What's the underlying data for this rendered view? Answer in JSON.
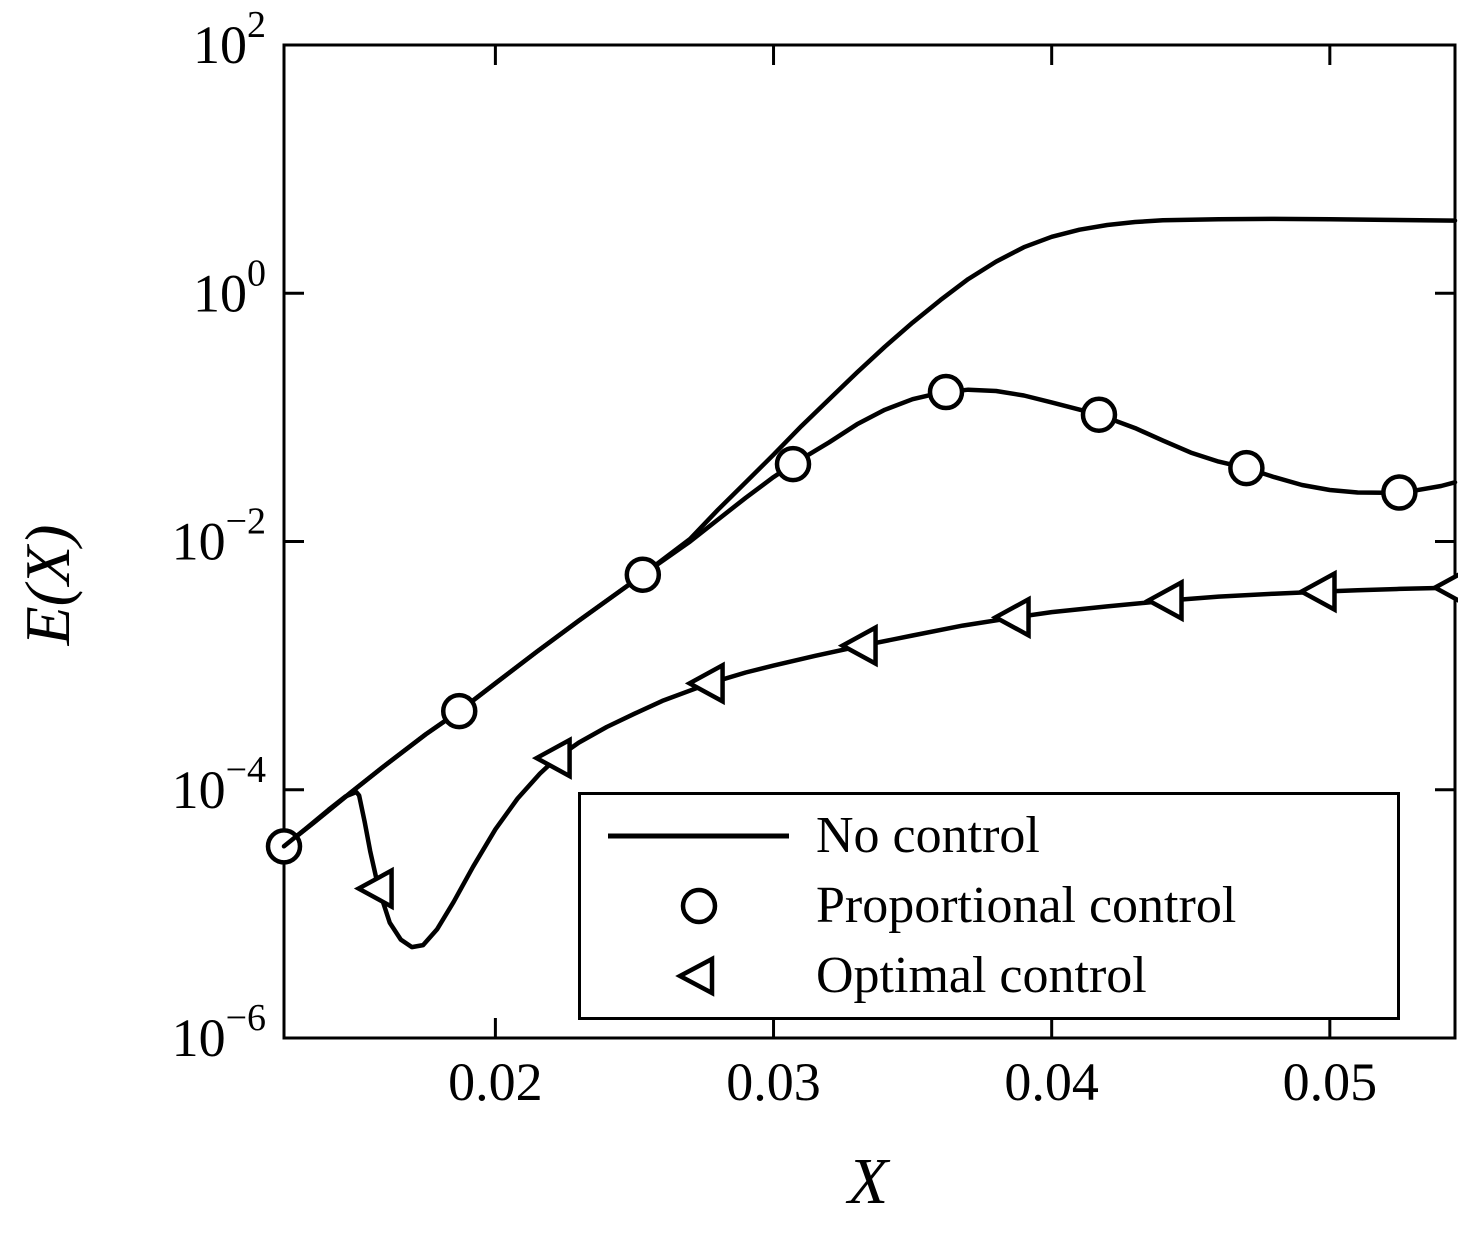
{
  "figure": {
    "background": "#ffffff",
    "line_color": "#000000"
  },
  "axes": {
    "x_ticks": [
      {
        "v": 0.02,
        "label": "0.02"
      },
      {
        "v": 0.03,
        "label": "0.03"
      },
      {
        "v": 0.04,
        "label": "0.04"
      },
      {
        "v": 0.05,
        "label": "0.05"
      }
    ],
    "y_ticks": [
      {
        "v": 100,
        "base": "10",
        "exp": "2"
      },
      {
        "v": 1,
        "base": "10",
        "exp": "0"
      },
      {
        "v": 0.01,
        "base": "10",
        "exp": "−2"
      },
      {
        "v": 0.0001,
        "base": "10",
        "exp": "−4"
      },
      {
        "v": 1e-06,
        "base": "10",
        "exp": "−6"
      }
    ]
  },
  "chart_data": {
    "type": "line",
    "title": "",
    "xlabel": "X",
    "ylabel": "E(X)",
    "x_scale": "linear",
    "y_scale": "log",
    "xlim": [
      0.0124,
      0.0545
    ],
    "ylim": [
      1e-06,
      100
    ],
    "grid": false,
    "legend_position": "lower right",
    "series": [
      {
        "id": "no-control",
        "name": "No control",
        "marker": "none",
        "line": "solid",
        "points": [
          [
            0.0124,
            3.5e-05
          ],
          [
            0.0135,
            5.5e-05
          ],
          [
            0.0148,
            9.5e-05
          ],
          [
            0.016,
            0.000155
          ],
          [
            0.0175,
            0.00028
          ],
          [
            0.0187,
            0.00043
          ],
          [
            0.02,
            0.00072
          ],
          [
            0.0215,
            0.0013
          ],
          [
            0.023,
            0.0023
          ],
          [
            0.0253,
            0.0054
          ],
          [
            0.027,
            0.0105
          ],
          [
            0.028,
            0.018
          ],
          [
            0.029,
            0.03
          ],
          [
            0.03,
            0.05
          ],
          [
            0.031,
            0.085
          ],
          [
            0.032,
            0.14
          ],
          [
            0.033,
            0.23
          ],
          [
            0.034,
            0.37
          ],
          [
            0.035,
            0.58
          ],
          [
            0.036,
            0.88
          ],
          [
            0.037,
            1.3
          ],
          [
            0.038,
            1.8
          ],
          [
            0.039,
            2.35
          ],
          [
            0.04,
            2.85
          ],
          [
            0.041,
            3.25
          ],
          [
            0.042,
            3.55
          ],
          [
            0.043,
            3.75
          ],
          [
            0.044,
            3.87
          ],
          [
            0.046,
            3.95
          ],
          [
            0.048,
            3.97
          ],
          [
            0.05,
            3.95
          ],
          [
            0.052,
            3.9
          ],
          [
            0.0545,
            3.85
          ]
        ],
        "marker_points": []
      },
      {
        "id": "proportional-control",
        "name": "Proportional control",
        "marker": "circle",
        "line": "solid",
        "points": [
          [
            0.0124,
            3.5e-05
          ],
          [
            0.0135,
            5.5e-05
          ],
          [
            0.0148,
            9.5e-05
          ],
          [
            0.016,
            0.000155
          ],
          [
            0.0175,
            0.00028
          ],
          [
            0.0187,
            0.00043
          ],
          [
            0.02,
            0.00072
          ],
          [
            0.0215,
            0.0013
          ],
          [
            0.023,
            0.0023
          ],
          [
            0.0253,
            0.0054
          ],
          [
            0.027,
            0.01
          ],
          [
            0.028,
            0.015
          ],
          [
            0.029,
            0.0225
          ],
          [
            0.03,
            0.033
          ],
          [
            0.0307,
            0.042
          ],
          [
            0.032,
            0.063
          ],
          [
            0.033,
            0.088
          ],
          [
            0.034,
            0.115
          ],
          [
            0.035,
            0.14
          ],
          [
            0.036,
            0.158
          ],
          [
            0.037,
            0.167
          ],
          [
            0.038,
            0.163
          ],
          [
            0.039,
            0.15
          ],
          [
            0.04,
            0.132
          ],
          [
            0.0417,
            0.105
          ],
          [
            0.043,
            0.082
          ],
          [
            0.044,
            0.065
          ],
          [
            0.045,
            0.052
          ],
          [
            0.046,
            0.044
          ],
          [
            0.047,
            0.039
          ],
          [
            0.048,
            0.033
          ],
          [
            0.049,
            0.0285
          ],
          [
            0.05,
            0.026
          ],
          [
            0.051,
            0.0248
          ],
          [
            0.052,
            0.0247
          ],
          [
            0.053,
            0.0256
          ],
          [
            0.054,
            0.028
          ],
          [
            0.0545,
            0.03
          ]
        ],
        "marker_points": [
          [
            0.0124,
            3.5e-05
          ],
          [
            0.0187,
            0.00043
          ],
          [
            0.0253,
            0.0054
          ],
          [
            0.0307,
            0.042
          ],
          [
            0.0362,
            0.16
          ],
          [
            0.0417,
            0.105
          ],
          [
            0.047,
            0.039
          ],
          [
            0.0525,
            0.0248
          ]
        ]
      },
      {
        "id": "optimal-control",
        "name": "Optimal control",
        "marker": "triangle-left",
        "line": "solid",
        "points": [
          [
            0.0124,
            3.5e-05
          ],
          [
            0.0132,
            4.9e-05
          ],
          [
            0.014,
            6.9e-05
          ],
          [
            0.0146,
            8.8e-05
          ],
          [
            0.015,
            9.6e-05
          ],
          [
            0.0151,
            9e-05
          ],
          [
            0.0153,
            5.5e-05
          ],
          [
            0.0155,
            3.2e-05
          ],
          [
            0.0158,
            1.6e-05
          ],
          [
            0.0162,
            8.5e-06
          ],
          [
            0.0166,
            6.2e-06
          ],
          [
            0.017,
            5.4e-06
          ],
          [
            0.0174,
            5.6e-06
          ],
          [
            0.0179,
            7.5e-06
          ],
          [
            0.0185,
            1.25e-05
          ],
          [
            0.0192,
            2.4e-05
          ],
          [
            0.02,
            4.8e-05
          ],
          [
            0.0208,
            8.5e-05
          ],
          [
            0.0216,
            0.000135
          ],
          [
            0.0222,
            0.00018
          ],
          [
            0.023,
            0.00024
          ],
          [
            0.024,
            0.00032
          ],
          [
            0.025,
            0.00041
          ],
          [
            0.026,
            0.00052
          ],
          [
            0.0277,
            0.00072
          ],
          [
            0.029,
            0.00088
          ],
          [
            0.03,
            0.001
          ],
          [
            0.0315,
            0.0012
          ],
          [
            0.0332,
            0.00145
          ],
          [
            0.035,
            0.00175
          ],
          [
            0.0368,
            0.0021
          ],
          [
            0.0387,
            0.00245
          ],
          [
            0.04,
            0.0027
          ],
          [
            0.042,
            0.003
          ],
          [
            0.0442,
            0.00335
          ],
          [
            0.046,
            0.0036
          ],
          [
            0.048,
            0.0038
          ],
          [
            0.0497,
            0.00395
          ],
          [
            0.051,
            0.00405
          ],
          [
            0.0525,
            0.00415
          ],
          [
            0.0545,
            0.00425
          ]
        ],
        "marker_points": [
          [
            0.0158,
            1.6e-05
          ],
          [
            0.0222,
            0.00018
          ],
          [
            0.0277,
            0.00072
          ],
          [
            0.0332,
            0.00145
          ],
          [
            0.0387,
            0.00245
          ],
          [
            0.0442,
            0.00335
          ],
          [
            0.0497,
            0.00395
          ],
          [
            0.0545,
            0.00425
          ]
        ]
      }
    ]
  }
}
